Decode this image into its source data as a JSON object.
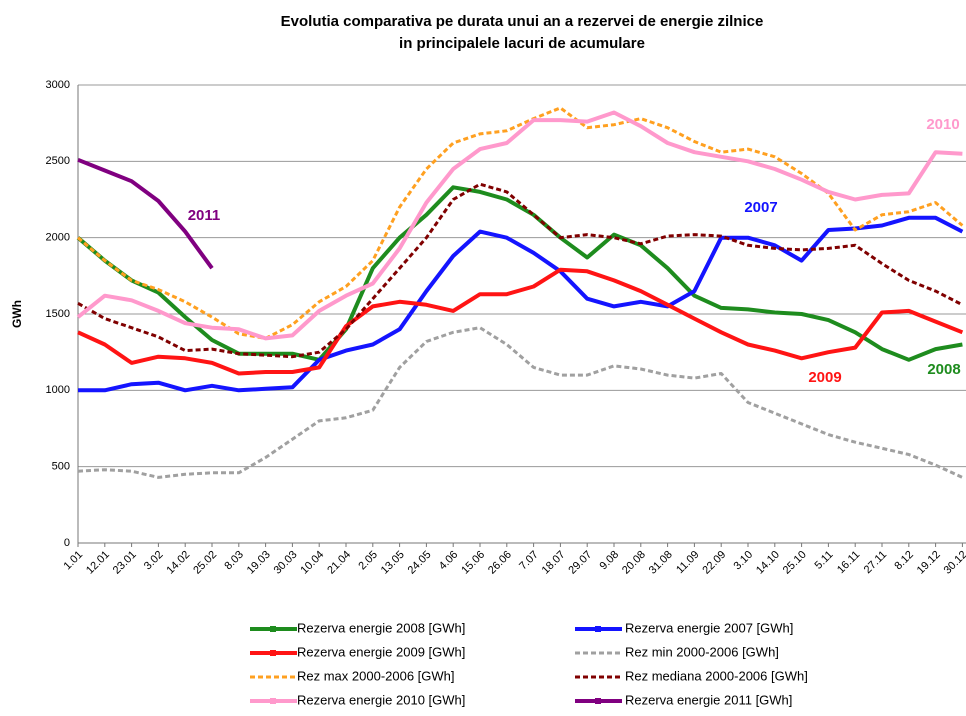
{
  "chart_data": {
    "type": "line",
    "title": [
      "Evolutia comparativa pe durata unui an a rezervei de energie zilnice",
      "in principalele lacuri de acumulare"
    ],
    "y_label": "GWh",
    "categories": [
      "1.01",
      "12.01",
      "23.01",
      "3.02",
      "14.02",
      "25.02",
      "8.03",
      "19.03",
      "30.03",
      "10.04",
      "21.04",
      "2.05",
      "13.05",
      "24.05",
      "4.06",
      "15.06",
      "26.06",
      "7.07",
      "18.07",
      "29.07",
      "9.08",
      "20.08",
      "31.08",
      "11.09",
      "22.09",
      "3.10",
      "14.10",
      "25.10",
      "5.11",
      "16.11",
      "27.11",
      "8.12",
      "19.12",
      "30.12"
    ],
    "ylim": [
      0,
      3000
    ],
    "yticks": [
      0,
      500,
      1000,
      1500,
      2000,
      2500,
      3000
    ],
    "grid": true,
    "series": [
      {
        "name": "Rezerva energie 2008 [GWh]",
        "color": "#1e8c1e",
        "dashed": false,
        "values": [
          2000,
          1850,
          1720,
          1640,
          1480,
          1330,
          1240,
          1240,
          1240,
          1200,
          1400,
          1800,
          2000,
          2150,
          2330,
          2300,
          2250,
          2150,
          2000,
          1870,
          2020,
          1950,
          1800,
          1620,
          1540,
          1530,
          1510,
          1500,
          1460,
          1380,
          1270,
          1200,
          1270,
          1300
        ]
      },
      {
        "name": "Rezerva energie 2007 [GWh]",
        "color": "#1414ff",
        "dashed": false,
        "values": [
          1000,
          1000,
          1040,
          1050,
          1000,
          1030,
          1000,
          1010,
          1020,
          1200,
          1260,
          1300,
          1400,
          1650,
          1880,
          2040,
          2000,
          1900,
          1780,
          1600,
          1550,
          1580,
          1550,
          1650,
          2000,
          2000,
          1950,
          1850,
          2050,
          2060,
          2080,
          2130,
          2130,
          2040
        ]
      },
      {
        "name": "Rezerva energie 2009 [GWh]",
        "color": "#ff1414",
        "dashed": false,
        "values": [
          1380,
          1300,
          1180,
          1220,
          1210,
          1180,
          1110,
          1120,
          1120,
          1150,
          1420,
          1550,
          1580,
          1560,
          1520,
          1630,
          1630,
          1680,
          1790,
          1780,
          1720,
          1650,
          1560,
          1470,
          1380,
          1300,
          1260,
          1210,
          1250,
          1280,
          1510,
          1520,
          1450,
          1380
        ]
      },
      {
        "name": "Rez min 2000-2006 [GWh]",
        "color": "#a0a0a0",
        "dashed": true,
        "values": [
          470,
          480,
          470,
          430,
          450,
          460,
          460,
          560,
          680,
          800,
          820,
          870,
          1150,
          1320,
          1380,
          1410,
          1300,
          1150,
          1100,
          1100,
          1160,
          1140,
          1100,
          1080,
          1110,
          920,
          850,
          780,
          710,
          660,
          620,
          580,
          510,
          430
        ]
      },
      {
        "name": "Rez max 2000-2006 [GWh]",
        "color": "#ffa020",
        "dashed": true,
        "values": [
          2000,
          1850,
          1720,
          1660,
          1580,
          1480,
          1370,
          1340,
          1430,
          1580,
          1680,
          1850,
          2200,
          2450,
          2620,
          2680,
          2700,
          2780,
          2850,
          2720,
          2740,
          2780,
          2720,
          2630,
          2560,
          2580,
          2530,
          2420,
          2290,
          2050,
          2150,
          2170,
          2230,
          2080
        ]
      },
      {
        "name": "Rez mediana 2000-2006 [GWh]",
        "color": "#800000",
        "dashed": true,
        "values": [
          1570,
          1470,
          1410,
          1350,
          1260,
          1270,
          1240,
          1230,
          1220,
          1250,
          1400,
          1600,
          1800,
          2000,
          2250,
          2350,
          2300,
          2150,
          2000,
          2020,
          2000,
          1960,
          2010,
          2020,
          2010,
          1950,
          1930,
          1920,
          1930,
          1950,
          1830,
          1720,
          1650,
          1560
        ]
      },
      {
        "name": "Rezerva energie 2010 [GWh]",
        "color": "#ff99cc",
        "dashed": false,
        "values": [
          1480,
          1620,
          1590,
          1520,
          1440,
          1410,
          1400,
          1340,
          1360,
          1520,
          1620,
          1700,
          1930,
          2230,
          2450,
          2580,
          2620,
          2770,
          2770,
          2760,
          2820,
          2730,
          2620,
          2560,
          2530,
          2500,
          2450,
          2380,
          2300,
          2250,
          2280,
          2290,
          2560,
          2550
        ]
      },
      {
        "name": "Rezerva energie 2011 [GWh]",
        "color": "#800080",
        "dashed": false,
        "values": [
          2510,
          2440,
          2370,
          2240,
          2040,
          1800,
          null,
          null,
          null,
          null,
          null,
          null,
          null,
          null,
          null,
          null,
          null,
          null,
          null,
          null,
          null,
          null,
          null,
          null,
          null,
          null,
          null,
          null,
          null,
          null,
          null,
          null,
          null,
          null
        ]
      }
    ],
    "annotations": [
      {
        "text": "2011",
        "color": "#800080"
      },
      {
        "text": "2007",
        "color": "#1414ff"
      },
      {
        "text": "2010",
        "color": "#ff99cc"
      },
      {
        "text": "2009",
        "color": "#ff1414"
      },
      {
        "text": "2008",
        "color": "#1e8c1e"
      }
    ]
  }
}
